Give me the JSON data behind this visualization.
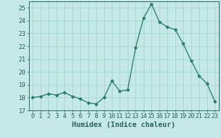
{
  "x": [
    0,
    1,
    2,
    3,
    4,
    5,
    6,
    7,
    8,
    9,
    10,
    11,
    12,
    13,
    14,
    15,
    16,
    17,
    18,
    19,
    20,
    21,
    22,
    23
  ],
  "y": [
    18.0,
    18.1,
    18.3,
    18.2,
    18.4,
    18.1,
    17.9,
    17.6,
    17.5,
    18.0,
    19.3,
    18.5,
    18.6,
    21.9,
    24.2,
    25.3,
    23.9,
    23.5,
    23.3,
    22.2,
    20.9,
    19.7,
    19.1,
    17.7
  ],
  "line_color": "#2d7d6e",
  "marker": "D",
  "markersize": 2.0,
  "linewidth": 1.0,
  "bg_color": "#c5e8e8",
  "grid_color": "#9ecece",
  "xlabel": "Humidex (Indice chaleur)",
  "xlim": [
    -0.5,
    23.5
  ],
  "ylim": [
    17,
    25.5
  ],
  "yticks": [
    17,
    18,
    19,
    20,
    21,
    22,
    23,
    24,
    25
  ],
  "xticks": [
    0,
    1,
    2,
    3,
    4,
    5,
    6,
    7,
    8,
    9,
    10,
    11,
    12,
    13,
    14,
    15,
    16,
    17,
    18,
    19,
    20,
    21,
    22,
    23
  ],
  "tick_color": "#2d6060",
  "axis_color": "#2d6060",
  "tick_fontsize": 6.5,
  "xlabel_fontsize": 7.5
}
